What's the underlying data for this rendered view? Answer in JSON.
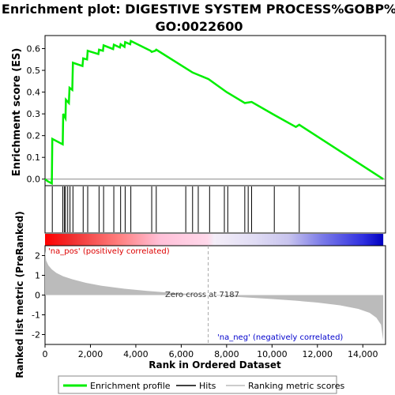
{
  "chart_data": [
    {
      "type": "line",
      "title_line1": "Enrichment plot: DIGESTIVE SYSTEM PROCESS%GOBP%",
      "title_line2": "GO:0022600",
      "ylabel": "Enrichment score (ES)",
      "ylim": [
        -0.03,
        0.66
      ],
      "yticks": [
        "0.0",
        "0.1",
        "0.2",
        "0.3",
        "0.4",
        "0.5",
        "0.6"
      ],
      "xlim": [
        0,
        15000
      ],
      "series": [
        {
          "name": "Enrichment profile",
          "color": "#00ee00",
          "x": [
            0,
            120,
            300,
            320,
            780,
            800,
            900,
            920,
            1050,
            1080,
            1200,
            1230,
            1650,
            1680,
            1850,
            1880,
            2350,
            2380,
            2550,
            2580,
            3000,
            3030,
            3300,
            3330,
            3500,
            3530,
            3750,
            3780,
            4650,
            4700,
            4850,
            4900,
            6200,
            6500,
            7200,
            8000,
            8800,
            9100,
            10100,
            11050,
            11200,
            14900
          ],
          "y": [
            0.0,
            -0.01,
            -0.02,
            0.185,
            0.16,
            0.3,
            0.28,
            0.365,
            0.35,
            0.42,
            0.41,
            0.535,
            0.52,
            0.555,
            0.55,
            0.59,
            0.575,
            0.595,
            0.59,
            0.615,
            0.598,
            0.618,
            0.605,
            0.62,
            0.608,
            0.63,
            0.62,
            0.635,
            0.59,
            0.585,
            0.59,
            0.595,
            0.51,
            0.49,
            0.46,
            0.4,
            0.35,
            0.355,
            0.295,
            0.24,
            0.25,
            0.0
          ]
        }
      ]
    },
    {
      "type": "hits",
      "series": [
        {
          "name": "Hits",
          "color": "#000000",
          "x": [
            320,
            780,
            850,
            900,
            1000,
            1100,
            1230,
            1680,
            1880,
            2380,
            2580,
            3030,
            3330,
            3530,
            3780,
            4700,
            4900,
            6200,
            6500,
            6750,
            7250,
            7900,
            8050,
            8800,
            8950,
            9100,
            10100,
            11200
          ]
        }
      ]
    },
    {
      "type": "area",
      "xlabel": "Rank in Ordered Dataset",
      "ylabel": "Ranked list metric (PreRanked)",
      "xlim": [
        0,
        15000
      ],
      "ylim": [
        -2.5,
        2.5
      ],
      "xticks": [
        "0",
        "2,000",
        "4,000",
        "6,000",
        "8,000",
        "10,000",
        "12,000",
        "14,000"
      ],
      "yticks": [
        "2",
        "1",
        "0",
        "-1",
        "-2"
      ],
      "series": [
        {
          "name": "Ranking metric scores",
          "color": "#bbbbbb",
          "x": [
            0,
            50,
            150,
            300,
            500,
            800,
            1200,
            1800,
            2500,
            3500,
            4500,
            5500,
            6500,
            7187,
            8000,
            9000,
            10000,
            11000,
            12000,
            13000,
            13800,
            14300,
            14600,
            14800,
            14900
          ],
          "y": [
            2.25,
            1.75,
            1.5,
            1.3,
            1.12,
            0.95,
            0.8,
            0.62,
            0.47,
            0.32,
            0.21,
            0.12,
            0.05,
            0.0,
            -0.06,
            -0.13,
            -0.2,
            -0.28,
            -0.38,
            -0.52,
            -0.7,
            -0.9,
            -1.15,
            -1.5,
            -2.3
          ]
        }
      ],
      "annotations": {
        "pos_label": "'na_pos' (positively correlated)",
        "neg_label": "'na_neg' (negatively correlated)",
        "zero_cross": "Zero cross at 7187",
        "zero_cross_rank": 7187
      }
    }
  ],
  "colors": {
    "pos": "#ff0000",
    "neg": "#0000ff",
    "es_line": "#00ee00",
    "pos_text": "#dd0000",
    "neg_text": "#0000cc"
  },
  "legend": {
    "items": [
      {
        "label": "Enrichment profile",
        "color": "#00ee00"
      },
      {
        "label": "Hits",
        "color": "#000000"
      },
      {
        "label": "Ranking metric scores",
        "color": "#bbbbbb"
      }
    ]
  }
}
